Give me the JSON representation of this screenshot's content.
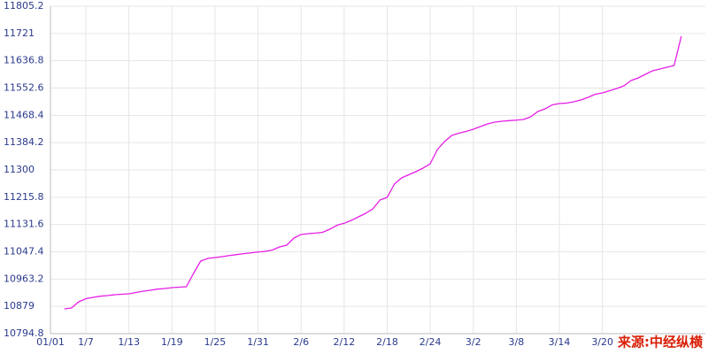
{
  "chart_data": {
    "type": "line",
    "annotation": "来源:中经纵横",
    "color": "#e61ee6",
    "grid": true,
    "ylim": [
      10794.8,
      11805.2
    ],
    "yticks": [
      10794.8,
      10879,
      10963.2,
      11047.4,
      11131.6,
      11215.8,
      11300,
      11384.2,
      11468.4,
      11552.6,
      11636.8,
      11721,
      11805.2
    ],
    "categories": [
      "01/01",
      null,
      null,
      null,
      null,
      null,
      "1/7",
      null,
      null,
      null,
      null,
      null,
      "1/13",
      null,
      null,
      null,
      null,
      null,
      "1/19",
      null,
      null,
      null,
      null,
      null,
      "1/25",
      null,
      null,
      null,
      null,
      null,
      "1/31",
      null,
      null,
      null,
      null,
      null,
      "2/6",
      null,
      null,
      null,
      null,
      null,
      "2/12",
      null,
      null,
      null,
      null,
      null,
      "2/18",
      null,
      null,
      null,
      null,
      null,
      "2/24",
      null,
      null,
      null,
      null,
      null,
      "3/2",
      null,
      null,
      null,
      null,
      null,
      "3/8",
      null,
      null,
      null,
      null,
      null,
      "3/14",
      null,
      null,
      null,
      null,
      null,
      "3/20",
      null,
      null,
      null,
      null,
      null,
      null,
      null,
      null,
      null,
      null,
      null
    ],
    "values": [
      null,
      null,
      null,
      10871.3,
      10874.0,
      10893.1,
      10902.7,
      10906.8,
      10910.3,
      10912.2,
      10915.0,
      10916.3,
      10917.7,
      10921.8,
      10925.9,
      10928.6,
      10932.2,
      10934.1,
      10936.8,
      10938.2,
      10939.5,
      10980.5,
      11018.7,
      11026.9,
      11029.6,
      11032.4,
      11035.7,
      11038.7,
      11041.7,
      11044.1,
      11046.6,
      11048.8,
      11052.9,
      11062.4,
      11067.9,
      11089.7,
      11100.7,
      11103.4,
      11105.0,
      11107.5,
      11117.0,
      11129.3,
      11135.3,
      11144.3,
      11155.3,
      11166.2,
      11179.8,
      11207.2,
      11215.3,
      11256.3,
      11275.4,
      11285.0,
      11294.5,
      11305.5,
      11319.1,
      11362.8,
      11387.4,
      11406.5,
      11413.3,
      11418.8,
      11425.6,
      11433.8,
      11442.0,
      11447.5,
      11450.2,
      11452.1,
      11453.7,
      11455.7,
      11463.8,
      11480.2,
      11488.4,
      11500.7,
      11504.8,
      11506.2,
      11510.3,
      11515.7,
      11523.9,
      11533.5,
      11537.6,
      11544.4,
      11551.2,
      11559.4,
      11575.8,
      11584.0,
      11594.9,
      11605.9,
      11611.3,
      11616.8,
      11622.2,
      11712.3
    ]
  }
}
